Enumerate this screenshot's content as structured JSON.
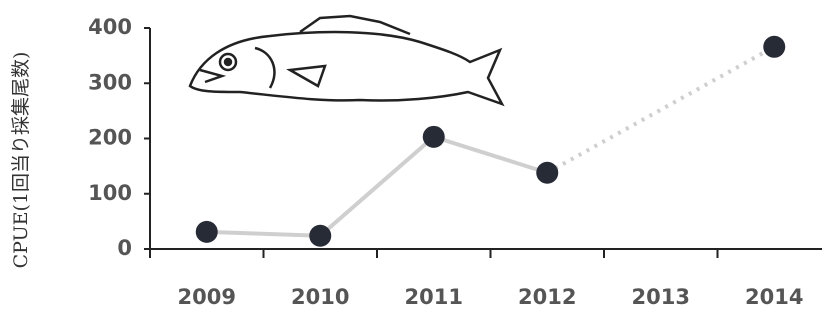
{
  "chart_data": {
    "type": "line",
    "y_label": "CPUE(1回当り採集尾数)",
    "categories": [
      "2009",
      "2010",
      "2011",
      "2012",
      "2013",
      "2014"
    ],
    "values": [
      31,
      24,
      203,
      138,
      null,
      366
    ],
    "line_color": "#cfcfcf",
    "marker_color": "#272b35",
    "ylim": [
      0,
      400
    ],
    "yticks": [
      0,
      100,
      200,
      300,
      400
    ]
  }
}
